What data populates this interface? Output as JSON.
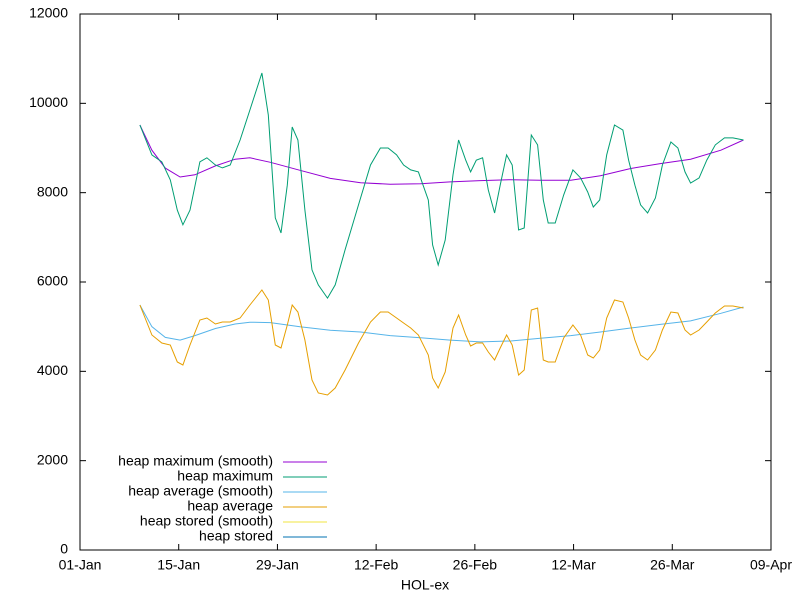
{
  "chart_data": {
    "type": "line",
    "xlabel": "HOL-ex",
    "xlim": [
      0,
      98
    ],
    "xticks": [
      {
        "value": 0,
        "label": "01-Jan"
      },
      {
        "value": 14,
        "label": "15-Jan"
      },
      {
        "value": 28,
        "label": "29-Jan"
      },
      {
        "value": 42,
        "label": "12-Feb"
      },
      {
        "value": 56,
        "label": "26-Feb"
      },
      {
        "value": 70,
        "label": "12-Mar"
      },
      {
        "value": 84,
        "label": "26-Mar"
      },
      {
        "value": 98,
        "label": "09-Apr"
      }
    ],
    "ylim": [
      0,
      12000
    ],
    "yticks": [
      0,
      2000,
      4000,
      6000,
      8000,
      10000,
      12000
    ],
    "legend": "bottom-left",
    "grid": false,
    "x": [
      8.5,
      10.2,
      11.6,
      12.8,
      13.8,
      14.6,
      15.6,
      17.0,
      18.0,
      19.2,
      20.2,
      21.3,
      22.7,
      24.1,
      25.8,
      26.7,
      27.7,
      28.5,
      29.4,
      30.1,
      30.9,
      31.9,
      32.9,
      33.8,
      35.1,
      36.2,
      37.6,
      39.5,
      41.2,
      42.6,
      43.7,
      44.9,
      45.9,
      46.9,
      48.0,
      49.4,
      50.0,
      50.8,
      51.8,
      52.9,
      53.7,
      54.7,
      55.4,
      56.2,
      57.1,
      57.9,
      58.8,
      59.6,
      60.5,
      61.3,
      62.2,
      63.0,
      64.0,
      64.9,
      65.7,
      66.4,
      67.4,
      68.6,
      69.9,
      71.0,
      72.0,
      72.8,
      73.7,
      74.7,
      75.8,
      77.0,
      77.8,
      78.7,
      79.5,
      80.5,
      81.6,
      82.6,
      83.8,
      84.8,
      85.8,
      86.6,
      87.8,
      88.9,
      90.1,
      91.4,
      92.6,
      94.1
    ],
    "series": [
      {
        "name": "heap maximum (smooth)",
        "color": "#9400d3",
        "x": [
          8.5,
          10.2,
          12.1,
          14.2,
          16.3,
          19.2,
          22.0,
          24.1,
          27.0,
          31.2,
          35.5,
          39.8,
          44.0,
          48.3,
          52.5,
          56.8,
          61.1,
          65.3,
          69.6,
          73.8,
          78.1,
          82.3,
          86.6,
          90.9,
          94.1
        ],
        "values": [
          9515,
          8950,
          8550,
          8350,
          8400,
          8600,
          8750,
          8780,
          8680,
          8500,
          8320,
          8220,
          8190,
          8200,
          8240,
          8270,
          8290,
          8280,
          8280,
          8380,
          8540,
          8650,
          8750,
          8950,
          9180
        ]
      },
      {
        "name": "heap maximum",
        "color": "#009e73",
        "values": [
          9515,
          8845,
          8690,
          8285,
          7610,
          7280,
          7610,
          8690,
          8780,
          8620,
          8555,
          8620,
          9180,
          9850,
          10680,
          9740,
          7435,
          7100,
          8170,
          9470,
          9180,
          7610,
          6270,
          5935,
          5640,
          5935,
          6720,
          7725,
          8620,
          9000,
          9000,
          8845,
          8620,
          8510,
          8465,
          7835,
          6830,
          6380,
          6940,
          8400,
          9180,
          8730,
          8465,
          8730,
          8780,
          8060,
          7545,
          8170,
          8845,
          8620,
          7165,
          7210,
          9290,
          9070,
          7835,
          7320,
          7320,
          7950,
          8510,
          8330,
          8015,
          7680,
          7835,
          8845,
          9515,
          9400,
          8730,
          8170,
          7725,
          7545,
          7880,
          8620,
          9135,
          9000,
          8465,
          8215,
          8330,
          8730,
          9070,
          9225,
          9225,
          9180
        ]
      },
      {
        "name": "heap average (smooth)",
        "color": "#56b4e9",
        "x": [
          8.5,
          10.2,
          12.1,
          14.2,
          16.3,
          19.2,
          22.0,
          24.1,
          27.0,
          31.2,
          35.5,
          39.8,
          44.0,
          48.3,
          52.5,
          56.8,
          61.1,
          65.3,
          69.6,
          73.8,
          78.1,
          82.3,
          86.6,
          90.9,
          94.1
        ],
        "values": [
          5485,
          5000,
          4760,
          4700,
          4800,
          4960,
          5060,
          5100,
          5090,
          5000,
          4920,
          4880,
          4800,
          4750,
          4700,
          4660,
          4680,
          4740,
          4800,
          4880,
          4970,
          5050,
          5130,
          5300,
          5440
        ]
      },
      {
        "name": "heap average",
        "color": "#e69f00",
        "values": [
          5485,
          4813,
          4634,
          4590,
          4209,
          4142,
          4590,
          5149,
          5194,
          5060,
          5104,
          5104,
          5194,
          5485,
          5821,
          5597,
          4590,
          4522,
          5037,
          5485,
          5328,
          4701,
          3806,
          3515,
          3470,
          3627,
          4030,
          4634,
          5104,
          5328,
          5328,
          5194,
          5082,
          4970,
          4813,
          4366,
          3851,
          3627,
          3985,
          4970,
          5261,
          4813,
          4567,
          4634,
          4634,
          4433,
          4254,
          4522,
          4813,
          4590,
          3918,
          4030,
          5373,
          5418,
          4254,
          4209,
          4209,
          4746,
          5037,
          4813,
          4366,
          4299,
          4478,
          5194,
          5597,
          5552,
          5194,
          4701,
          4366,
          4254,
          4478,
          4925,
          5328,
          5306,
          4925,
          4813,
          4925,
          5104,
          5306,
          5463,
          5463,
          5418
        ]
      },
      {
        "name": "heap stored (smooth)",
        "color": "#f0e442",
        "x": [],
        "values": []
      },
      {
        "name": "heap stored",
        "color": "#0072b2",
        "x": [],
        "values": []
      }
    ]
  }
}
